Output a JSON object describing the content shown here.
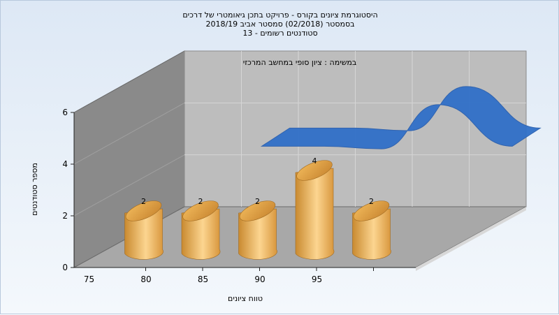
{
  "chart_data": {
    "type": "bar",
    "title_lines": [
      "היסטוגרמת ציונים בקורס - פרויקט בתכן גיאומטרי של דרכים",
      "בסמסטר  (02/2018)  סמסטר אביב 2018/19",
      "סטודנטים רשומים - 13"
    ],
    "annotation": "במשימה : ציון סופי במחשב המרכזי",
    "xlabel": "טווח ציונים",
    "ylabel": "מספר סטודנטים",
    "x_ticks": [
      "75",
      "80",
      "85",
      "90",
      "95"
    ],
    "y_ticks": [
      "0",
      "2",
      "4",
      "6"
    ],
    "ylim": [
      0,
      6
    ],
    "bars": [
      {
        "x": 75,
        "value": 2,
        "label": "2"
      },
      {
        "x": 80,
        "value": 2,
        "label": "2"
      },
      {
        "x": 85,
        "value": 2,
        "label": "2"
      },
      {
        "x": 90,
        "value": 4,
        "label": "4"
      },
      {
        "x": 95,
        "value": 2,
        "label": "2"
      }
    ],
    "curve_series": {
      "x": [
        78.5,
        84,
        89,
        94,
        100.5
      ],
      "values": [
        2.6,
        2.6,
        2.5,
        4.2,
        2.6
      ]
    },
    "grid": true,
    "colors": {
      "bar": "#e8a84c",
      "bar_light": "#fcd590",
      "curve": "#3070c8",
      "wall_left": "#8a8a8a",
      "wall_back": "#bdbdbd",
      "floor": "#a8a8a8"
    }
  }
}
